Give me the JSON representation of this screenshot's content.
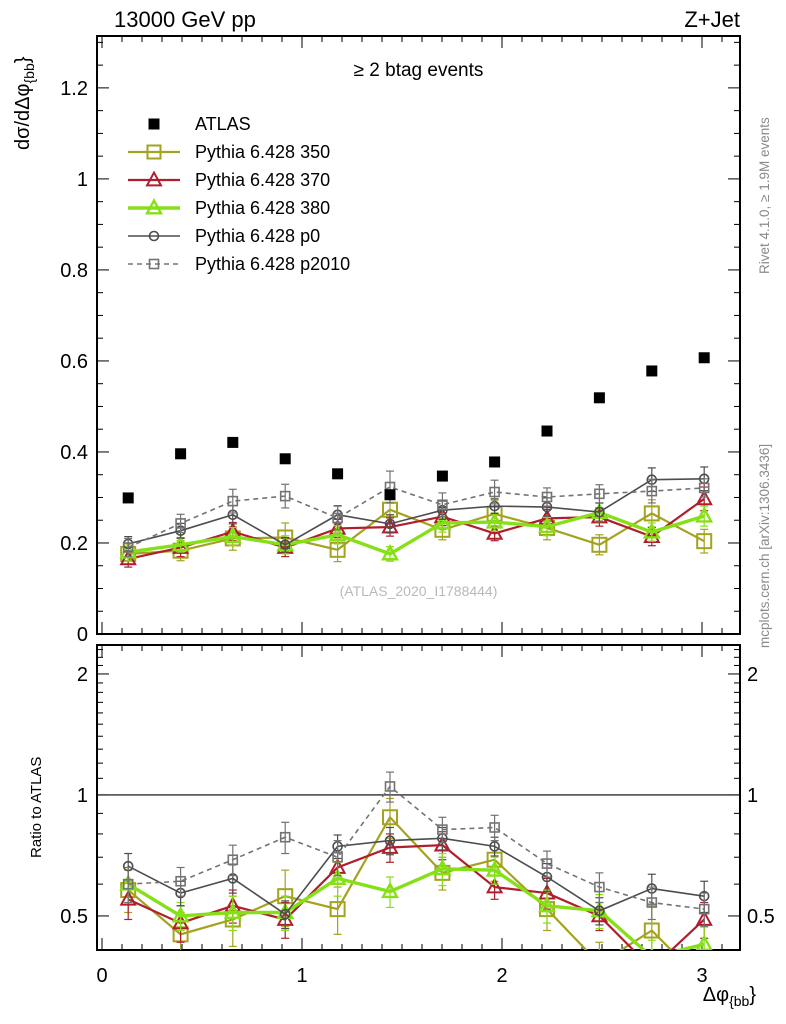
{
  "header": {
    "left": "13000 GeV pp",
    "right": "Z+Jet"
  },
  "side_texts": {
    "top_right": "Rivet 4.1.0, ≥ 1.9M events",
    "bottom_right": "mcplots.cern.ch [arXiv:1306.3436]"
  },
  "watermark": "(ATLAS_2020_I1788444)",
  "chart_data": {
    "type": "line",
    "title": "≥ 2 btag events",
    "xlabel_parts": {
      "prefix": "Δφ",
      "sub": "{bb",
      "suffix": "}"
    },
    "ylabel_parts": {
      "prefix": "dσ/dΔφ",
      "sub": "{bb",
      "suffix": "}"
    },
    "ratio_ylabel": "Ratio to ATLAS",
    "legend_position": "top-left",
    "grid": false,
    "x_bins": [
      0.131,
      0.393,
      0.654,
      0.916,
      1.178,
      1.44,
      1.702,
      1.963,
      2.225,
      2.487,
      2.749,
      3.011
    ],
    "x_axis": {
      "min": -0.025,
      "max": 3.19,
      "major_values": [
        0,
        1,
        2,
        3
      ],
      "major_labels": [
        "0",
        "1",
        "2",
        "3"
      ],
      "minor_step": 0.1
    },
    "main_axis": {
      "scale": "linear",
      "min": 0,
      "max": 1.314,
      "major_values": [
        0,
        0.2,
        0.4,
        0.6,
        0.8,
        1.0,
        1.2
      ],
      "major_labels": [
        "0",
        "0.2",
        "0.4",
        "0.6",
        "0.8",
        "1",
        "1.2"
      ],
      "minor_step": 0.05
    },
    "ratio_axis": {
      "scale": "log",
      "min": 0.4114,
      "max": 2.361,
      "major_values": [
        0.5,
        1,
        2
      ],
      "major_labels": [
        "0.5",
        "1",
        "2"
      ],
      "minor_values": [
        0.4,
        0.6,
        0.7,
        0.8,
        0.9,
        1.1,
        1.2,
        1.3,
        1.4,
        1.5,
        1.6,
        1.7,
        1.8,
        1.9,
        2.1,
        2.2,
        2.3
      ]
    },
    "ratio_reference_line": 1,
    "series": [
      {
        "name": "ATLAS",
        "color": "#000000",
        "marker": "square-filled",
        "marker_size": 11,
        "line": "none",
        "main": [
          0.299,
          0.396,
          0.421,
          0.385,
          0.352,
          0.306,
          0.347,
          0.378,
          0.446,
          0.519,
          0.578,
          0.607
        ]
      },
      {
        "name": "Pythia 6.428 350",
        "color": "#a3a31f",
        "marker": "square-open",
        "marker_size": 14,
        "marker_stroke": 2,
        "line_width": 2.2,
        "main": [
          0.176,
          0.183,
          0.21,
          0.212,
          0.185,
          0.273,
          0.229,
          0.264,
          0.233,
          0.196,
          0.265,
          0.204
        ],
        "main_err": [
          0.022,
          0.022,
          0.026,
          0.032,
          0.026,
          0.03,
          0.022,
          0.03,
          0.026,
          0.022,
          0.03,
          0.026
        ],
        "ratio": [
          0.58,
          0.45,
          0.49,
          0.56,
          0.52,
          0.88,
          0.64,
          0.69,
          0.52,
          0.38,
          0.46,
          0.34
        ],
        "ratio_err": [
          0.07,
          0.06,
          0.07,
          0.09,
          0.07,
          0.1,
          0.06,
          0.08,
          0.06,
          0.05,
          0.07,
          0.05
        ]
      },
      {
        "name": "Pythia 6.428 370",
        "color": "#b01e2e",
        "marker": "triangle-open",
        "marker_size": 12,
        "marker_stroke": 2,
        "line_width": 2.2,
        "main": [
          0.165,
          0.19,
          0.225,
          0.19,
          0.232,
          0.235,
          0.258,
          0.221,
          0.254,
          0.257,
          0.214,
          0.297
        ],
        "main_err": [
          0.018,
          0.02,
          0.02,
          0.02,
          0.02,
          0.02,
          0.02,
          0.016,
          0.02,
          0.02,
          0.02,
          0.026
        ],
        "ratio": [
          0.55,
          0.48,
          0.53,
          0.49,
          0.66,
          0.74,
          0.75,
          0.59,
          0.57,
          0.5,
          0.37,
          0.49
        ],
        "ratio_err": [
          0.06,
          0.05,
          0.05,
          0.05,
          0.06,
          0.06,
          0.06,
          0.04,
          0.05,
          0.04,
          0.04,
          0.05
        ]
      },
      {
        "name": "Pythia 6.428 380",
        "color": "#85e018",
        "marker": "triangle-open",
        "marker_size": 12,
        "marker_stroke": 2.4,
        "line_width": 3.4,
        "main": [
          0.18,
          0.196,
          0.214,
          0.196,
          0.218,
          0.176,
          0.244,
          0.246,
          0.236,
          0.267,
          0.224,
          0.259
        ],
        "main_err": [
          0.02,
          0.016,
          0.02,
          0.02,
          0.02,
          0.016,
          0.02,
          0.02,
          0.02,
          0.02,
          0.02,
          0.022
        ],
        "ratio": [
          0.6,
          0.5,
          0.51,
          0.51,
          0.62,
          0.575,
          0.655,
          0.65,
          0.53,
          0.515,
          0.395,
          0.425
        ],
        "ratio_err": [
          0.06,
          0.04,
          0.05,
          0.05,
          0.06,
          0.05,
          0.06,
          0.05,
          0.05,
          0.05,
          0.04,
          0.045
        ]
      },
      {
        "name": "Pythia 6.428 p0",
        "color": "#4d4d4d",
        "marker": "circle-open",
        "marker_size": 9,
        "marker_stroke": 1.6,
        "line_width": 1.6,
        "main": [
          0.198,
          0.227,
          0.262,
          0.196,
          0.262,
          0.242,
          0.272,
          0.281,
          0.279,
          0.268,
          0.339,
          0.341
        ],
        "main_err": [
          0.016,
          0.016,
          0.02,
          0.016,
          0.02,
          0.02,
          0.02,
          0.016,
          0.02,
          0.02,
          0.026,
          0.026
        ],
        "ratio": [
          0.665,
          0.57,
          0.62,
          0.505,
          0.745,
          0.77,
          0.78,
          0.745,
          0.625,
          0.515,
          0.585,
          0.56
        ],
        "ratio_err": [
          0.05,
          0.04,
          0.05,
          0.04,
          0.05,
          0.06,
          0.05,
          0.04,
          0.05,
          0.04,
          0.05,
          0.05
        ]
      },
      {
        "name": "Pythia 6.428 p2010",
        "color": "#737373",
        "marker": "square-open",
        "marker_size": 9,
        "marker_stroke": 1.6,
        "line_width": 1.6,
        "dash": "5,4",
        "main": [
          0.19,
          0.243,
          0.292,
          0.303,
          0.255,
          0.323,
          0.284,
          0.312,
          0.301,
          0.308,
          0.314,
          0.321
        ],
        "main_err": [
          0.02,
          0.02,
          0.026,
          0.026,
          0.026,
          0.035,
          0.026,
          0.026,
          0.02,
          0.02,
          0.026,
          0.02
        ],
        "ratio": [
          0.6,
          0.61,
          0.69,
          0.785,
          0.7,
          1.05,
          0.82,
          0.83,
          0.675,
          0.59,
          0.54,
          0.52
        ],
        "ratio_err": [
          0.06,
          0.05,
          0.06,
          0.07,
          0.07,
          0.09,
          0.06,
          0.06,
          0.05,
          0.05,
          0.05,
          0.05
        ]
      }
    ]
  }
}
